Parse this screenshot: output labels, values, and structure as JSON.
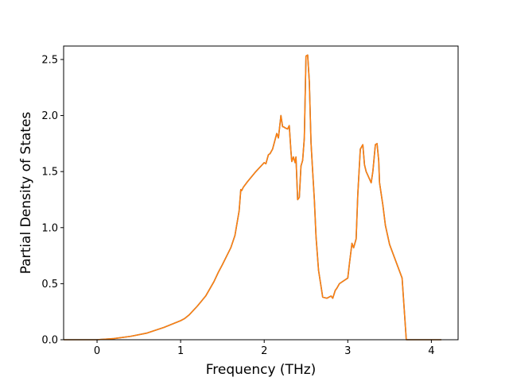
{
  "chart_data": {
    "type": "line",
    "title": "",
    "xlabel": "Frequency (THz)",
    "ylabel": "Partial Density of States",
    "xlim": [
      -0.4,
      4.32
    ],
    "ylim": [
      0.0,
      2.62
    ],
    "xticks": [
      0,
      1,
      2,
      3,
      4
    ],
    "xtick_labels": [
      "0",
      "1",
      "2",
      "3",
      "4"
    ],
    "yticks": [
      0.0,
      0.5,
      1.0,
      1.5,
      2.0,
      2.5
    ],
    "ytick_labels": [
      "0.0",
      "0.5",
      "1.0",
      "1.5",
      "2.0",
      "2.5"
    ],
    "grid": false,
    "legend": "none",
    "colors": {
      "series_blue": "#1f77b4",
      "series_orange": "#ff7f0e"
    },
    "series": [
      {
        "color": "#1f77b4",
        "x": [
          -0.4,
          0.0,
          0.2,
          0.4,
          0.6,
          0.8,
          1.0,
          1.05,
          1.1,
          1.2,
          1.3,
          1.4,
          1.45,
          1.5,
          1.6,
          1.65,
          1.7,
          1.72,
          1.73,
          1.75,
          1.8,
          1.9,
          2.0,
          2.02,
          2.05,
          2.07,
          2.1,
          2.15,
          2.17,
          2.2,
          2.22,
          2.23,
          2.25,
          2.28,
          2.3,
          2.32,
          2.33,
          2.35,
          2.37,
          2.38,
          2.4,
          2.42,
          2.44,
          2.46,
          2.48,
          2.5,
          2.52,
          2.54,
          2.56,
          2.58,
          2.6,
          2.62,
          2.65,
          2.7,
          2.75,
          2.8,
          2.82,
          2.85,
          2.87,
          2.9,
          3.0,
          3.02,
          3.05,
          3.07,
          3.1,
          3.12,
          3.15,
          3.18,
          3.2,
          3.22,
          3.25,
          3.28,
          3.3,
          3.33,
          3.35,
          3.37,
          3.38,
          3.4,
          3.42,
          3.45,
          3.5,
          3.55,
          3.6,
          3.65,
          3.7,
          3.72,
          3.75,
          3.8,
          4.12
        ],
        "y": [
          0.0,
          0.0,
          0.01,
          0.03,
          0.06,
          0.11,
          0.17,
          0.19,
          0.22,
          0.3,
          0.39,
          0.52,
          0.6,
          0.67,
          0.82,
          0.93,
          1.15,
          1.34,
          1.33,
          1.36,
          1.41,
          1.5,
          1.58,
          1.57,
          1.65,
          1.66,
          1.7,
          1.84,
          1.8,
          2.0,
          1.9,
          1.9,
          1.89,
          1.88,
          1.91,
          1.68,
          1.59,
          1.63,
          1.58,
          1.63,
          1.25,
          1.27,
          1.55,
          1.6,
          1.8,
          2.53,
          2.54,
          2.3,
          1.76,
          1.5,
          1.25,
          0.92,
          0.62,
          0.38,
          0.37,
          0.39,
          0.37,
          0.44,
          0.46,
          0.5,
          0.55,
          0.68,
          0.86,
          0.82,
          0.9,
          1.3,
          1.7,
          1.74,
          1.56,
          1.5,
          1.45,
          1.4,
          1.5,
          1.74,
          1.75,
          1.6,
          1.4,
          1.3,
          1.2,
          1.02,
          0.85,
          0.75,
          0.65,
          0.55,
          0.0,
          0.0,
          0.0,
          0.0,
          0.0
        ]
      },
      {
        "color": "#ff7f0e",
        "x": [
          -0.4,
          0.0,
          0.2,
          0.4,
          0.6,
          0.8,
          1.0,
          1.05,
          1.1,
          1.2,
          1.3,
          1.4,
          1.45,
          1.5,
          1.6,
          1.65,
          1.7,
          1.72,
          1.73,
          1.75,
          1.8,
          1.9,
          2.0,
          2.02,
          2.05,
          2.07,
          2.1,
          2.15,
          2.17,
          2.2,
          2.22,
          2.23,
          2.25,
          2.28,
          2.3,
          2.32,
          2.33,
          2.35,
          2.37,
          2.38,
          2.4,
          2.42,
          2.44,
          2.46,
          2.48,
          2.5,
          2.52,
          2.54,
          2.56,
          2.58,
          2.6,
          2.62,
          2.65,
          2.7,
          2.75,
          2.8,
          2.82,
          2.85,
          2.87,
          2.9,
          3.0,
          3.02,
          3.05,
          3.07,
          3.1,
          3.12,
          3.15,
          3.18,
          3.2,
          3.22,
          3.25,
          3.28,
          3.3,
          3.33,
          3.35,
          3.37,
          3.38,
          3.4,
          3.42,
          3.45,
          3.5,
          3.55,
          3.6,
          3.65,
          3.7,
          3.72,
          3.75,
          3.8,
          4.12
        ],
        "y": [
          0.0,
          0.0,
          0.01,
          0.03,
          0.06,
          0.11,
          0.17,
          0.19,
          0.22,
          0.3,
          0.39,
          0.52,
          0.6,
          0.67,
          0.82,
          0.93,
          1.15,
          1.34,
          1.33,
          1.36,
          1.41,
          1.5,
          1.58,
          1.57,
          1.65,
          1.66,
          1.7,
          1.84,
          1.8,
          2.0,
          1.9,
          1.9,
          1.89,
          1.88,
          1.91,
          1.68,
          1.59,
          1.63,
          1.58,
          1.63,
          1.25,
          1.27,
          1.55,
          1.6,
          1.8,
          2.53,
          2.54,
          2.3,
          1.76,
          1.5,
          1.25,
          0.92,
          0.62,
          0.38,
          0.37,
          0.39,
          0.37,
          0.44,
          0.46,
          0.5,
          0.55,
          0.68,
          0.86,
          0.82,
          0.9,
          1.3,
          1.7,
          1.74,
          1.56,
          1.5,
          1.45,
          1.4,
          1.5,
          1.74,
          1.75,
          1.6,
          1.4,
          1.3,
          1.2,
          1.02,
          0.85,
          0.75,
          0.65,
          0.55,
          0.0,
          0.0,
          0.0,
          0.0,
          0.0
        ]
      }
    ]
  }
}
